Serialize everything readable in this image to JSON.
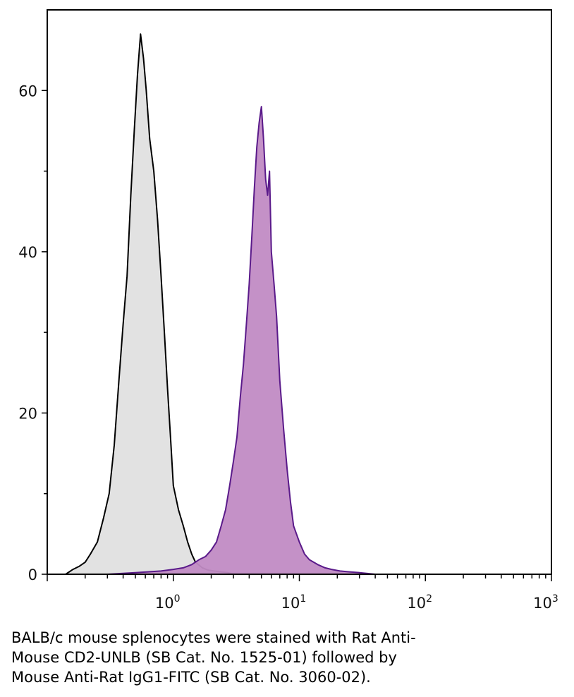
{
  "chart_data": {
    "type": "area",
    "title": "",
    "xlabel": "",
    "ylabel": "",
    "x_scale": "log",
    "xlim": [
      0.1,
      1000
    ],
    "ylim": [
      0,
      70
    ],
    "grid": false,
    "x_ticks": [
      {
        "value": 1,
        "base": "10",
        "exp": "0"
      },
      {
        "value": 10,
        "base": "10",
        "exp": "1"
      },
      {
        "value": 100,
        "base": "10",
        "exp": "2"
      },
      {
        "value": 1000,
        "base": "10",
        "exp": "3"
      }
    ],
    "y_ticks": [
      {
        "value": 0,
        "label": "0"
      },
      {
        "value": 20,
        "label": "20"
      },
      {
        "value": 40,
        "label": "40"
      },
      {
        "value": 60,
        "label": "60"
      }
    ],
    "series": [
      {
        "fill": "#e0e0e0",
        "stroke": "#000000",
        "x": [
          0.14,
          0.16,
          0.18,
          0.2,
          0.22,
          0.25,
          0.28,
          0.31,
          0.34,
          0.37,
          0.4,
          0.43,
          0.46,
          0.49,
          0.52,
          0.55,
          0.58,
          0.61,
          0.65,
          0.7,
          0.75,
          0.8,
          0.85,
          0.9,
          0.95,
          1.0,
          1.1,
          1.2,
          1.3,
          1.4,
          1.5,
          1.7,
          1.9,
          2.1,
          2.4,
          2.7,
          3.0
        ],
        "values": [
          0,
          0.6,
          1,
          1.5,
          2.5,
          4,
          7,
          10,
          16,
          24,
          31,
          37,
          47,
          55,
          62,
          67,
          64,
          60,
          54,
          50,
          44,
          37,
          30,
          23,
          17,
          11,
          8,
          6,
          4,
          2.5,
          1.5,
          0.8,
          0.5,
          0.4,
          0.3,
          0.2,
          0
        ]
      },
      {
        "fill": "#c18bc4",
        "stroke": "#5a1a8a",
        "x": [
          0.3,
          0.5,
          0.8,
          1.0,
          1.2,
          1.4,
          1.6,
          1.8,
          2.0,
          2.2,
          2.4,
          2.6,
          2.8,
          3.0,
          3.2,
          3.4,
          3.6,
          3.8,
          4.0,
          4.2,
          4.4,
          4.6,
          4.8,
          5.0,
          5.2,
          5.4,
          5.6,
          5.8,
          6.0,
          6.3,
          6.6,
          7.0,
          7.5,
          8.0,
          8.5,
          9.0,
          10,
          11,
          12,
          14,
          16,
          18,
          21,
          25,
          30,
          40
        ],
        "values": [
          0,
          0.2,
          0.4,
          0.6,
          0.8,
          1.2,
          1.8,
          2.2,
          3,
          4,
          6,
          8,
          11,
          14,
          17,
          22,
          26,
          31,
          36,
          42,
          48,
          53,
          56,
          58,
          54,
          49,
          47,
          50,
          40,
          36,
          32,
          24,
          18,
          13,
          9,
          6,
          4,
          2.5,
          1.8,
          1.2,
          0.8,
          0.6,
          0.4,
          0.3,
          0.2,
          0
        ]
      }
    ]
  },
  "caption_lines": [
    "BALB/c mouse splenocytes were stained with Rat Anti-",
    "Mouse CD2-UNLB (SB Cat. No. 1525-01) followed by",
    "Mouse Anti-Rat IgG1-FITC (SB Cat. No. 3060-02)."
  ]
}
